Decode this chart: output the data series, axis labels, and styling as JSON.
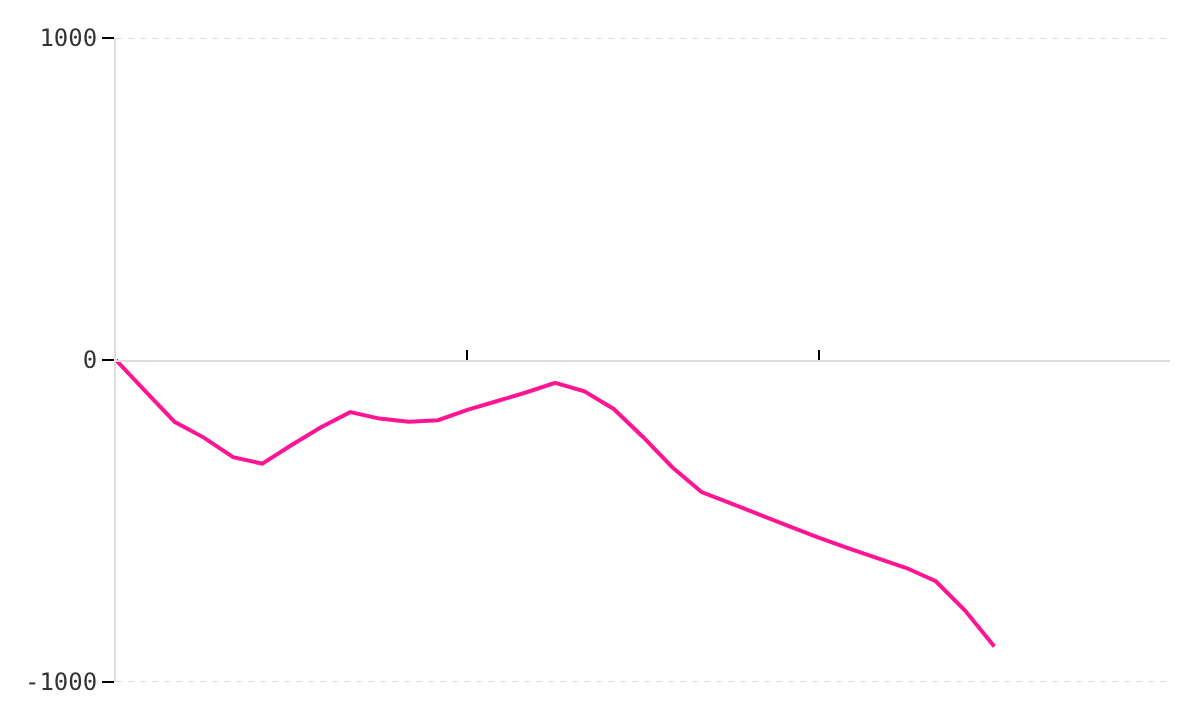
{
  "chart_data": {
    "type": "line",
    "categories": [
      null,
      null,
      null,
      null,
      null,
      null,
      null,
      null,
      null,
      null,
      null,
      null,
      null,
      null,
      null,
      null,
      null,
      null,
      null,
      null,
      null,
      null,
      null,
      null,
      null,
      null,
      null,
      null,
      null,
      null,
      null,
      null,
      null,
      null,
      null,
      null,
      null
    ],
    "series": [
      {
        "color": "#ff1493",
        "values": [
          0,
          -97,
          -192,
          -241,
          -302,
          -322,
          -264,
          -209,
          -162,
          -182,
          -192,
          -187,
          -155,
          -128,
          -101,
          -71,
          -97,
          -152,
          -239,
          -333,
          -410,
          -445,
          -481,
          -517,
          -552,
          -584,
          -615,
          -646,
          -687,
          -778,
          -890,
          null,
          null,
          null,
          null,
          null,
          null
        ]
      }
    ],
    "ylim": [
      -1000,
      1000
    ],
    "yticks": [
      -1000,
      0,
      1000
    ],
    "grid": "y",
    "marker": "none",
    "line_style": "solid",
    "tick_labels": "y"
  }
}
